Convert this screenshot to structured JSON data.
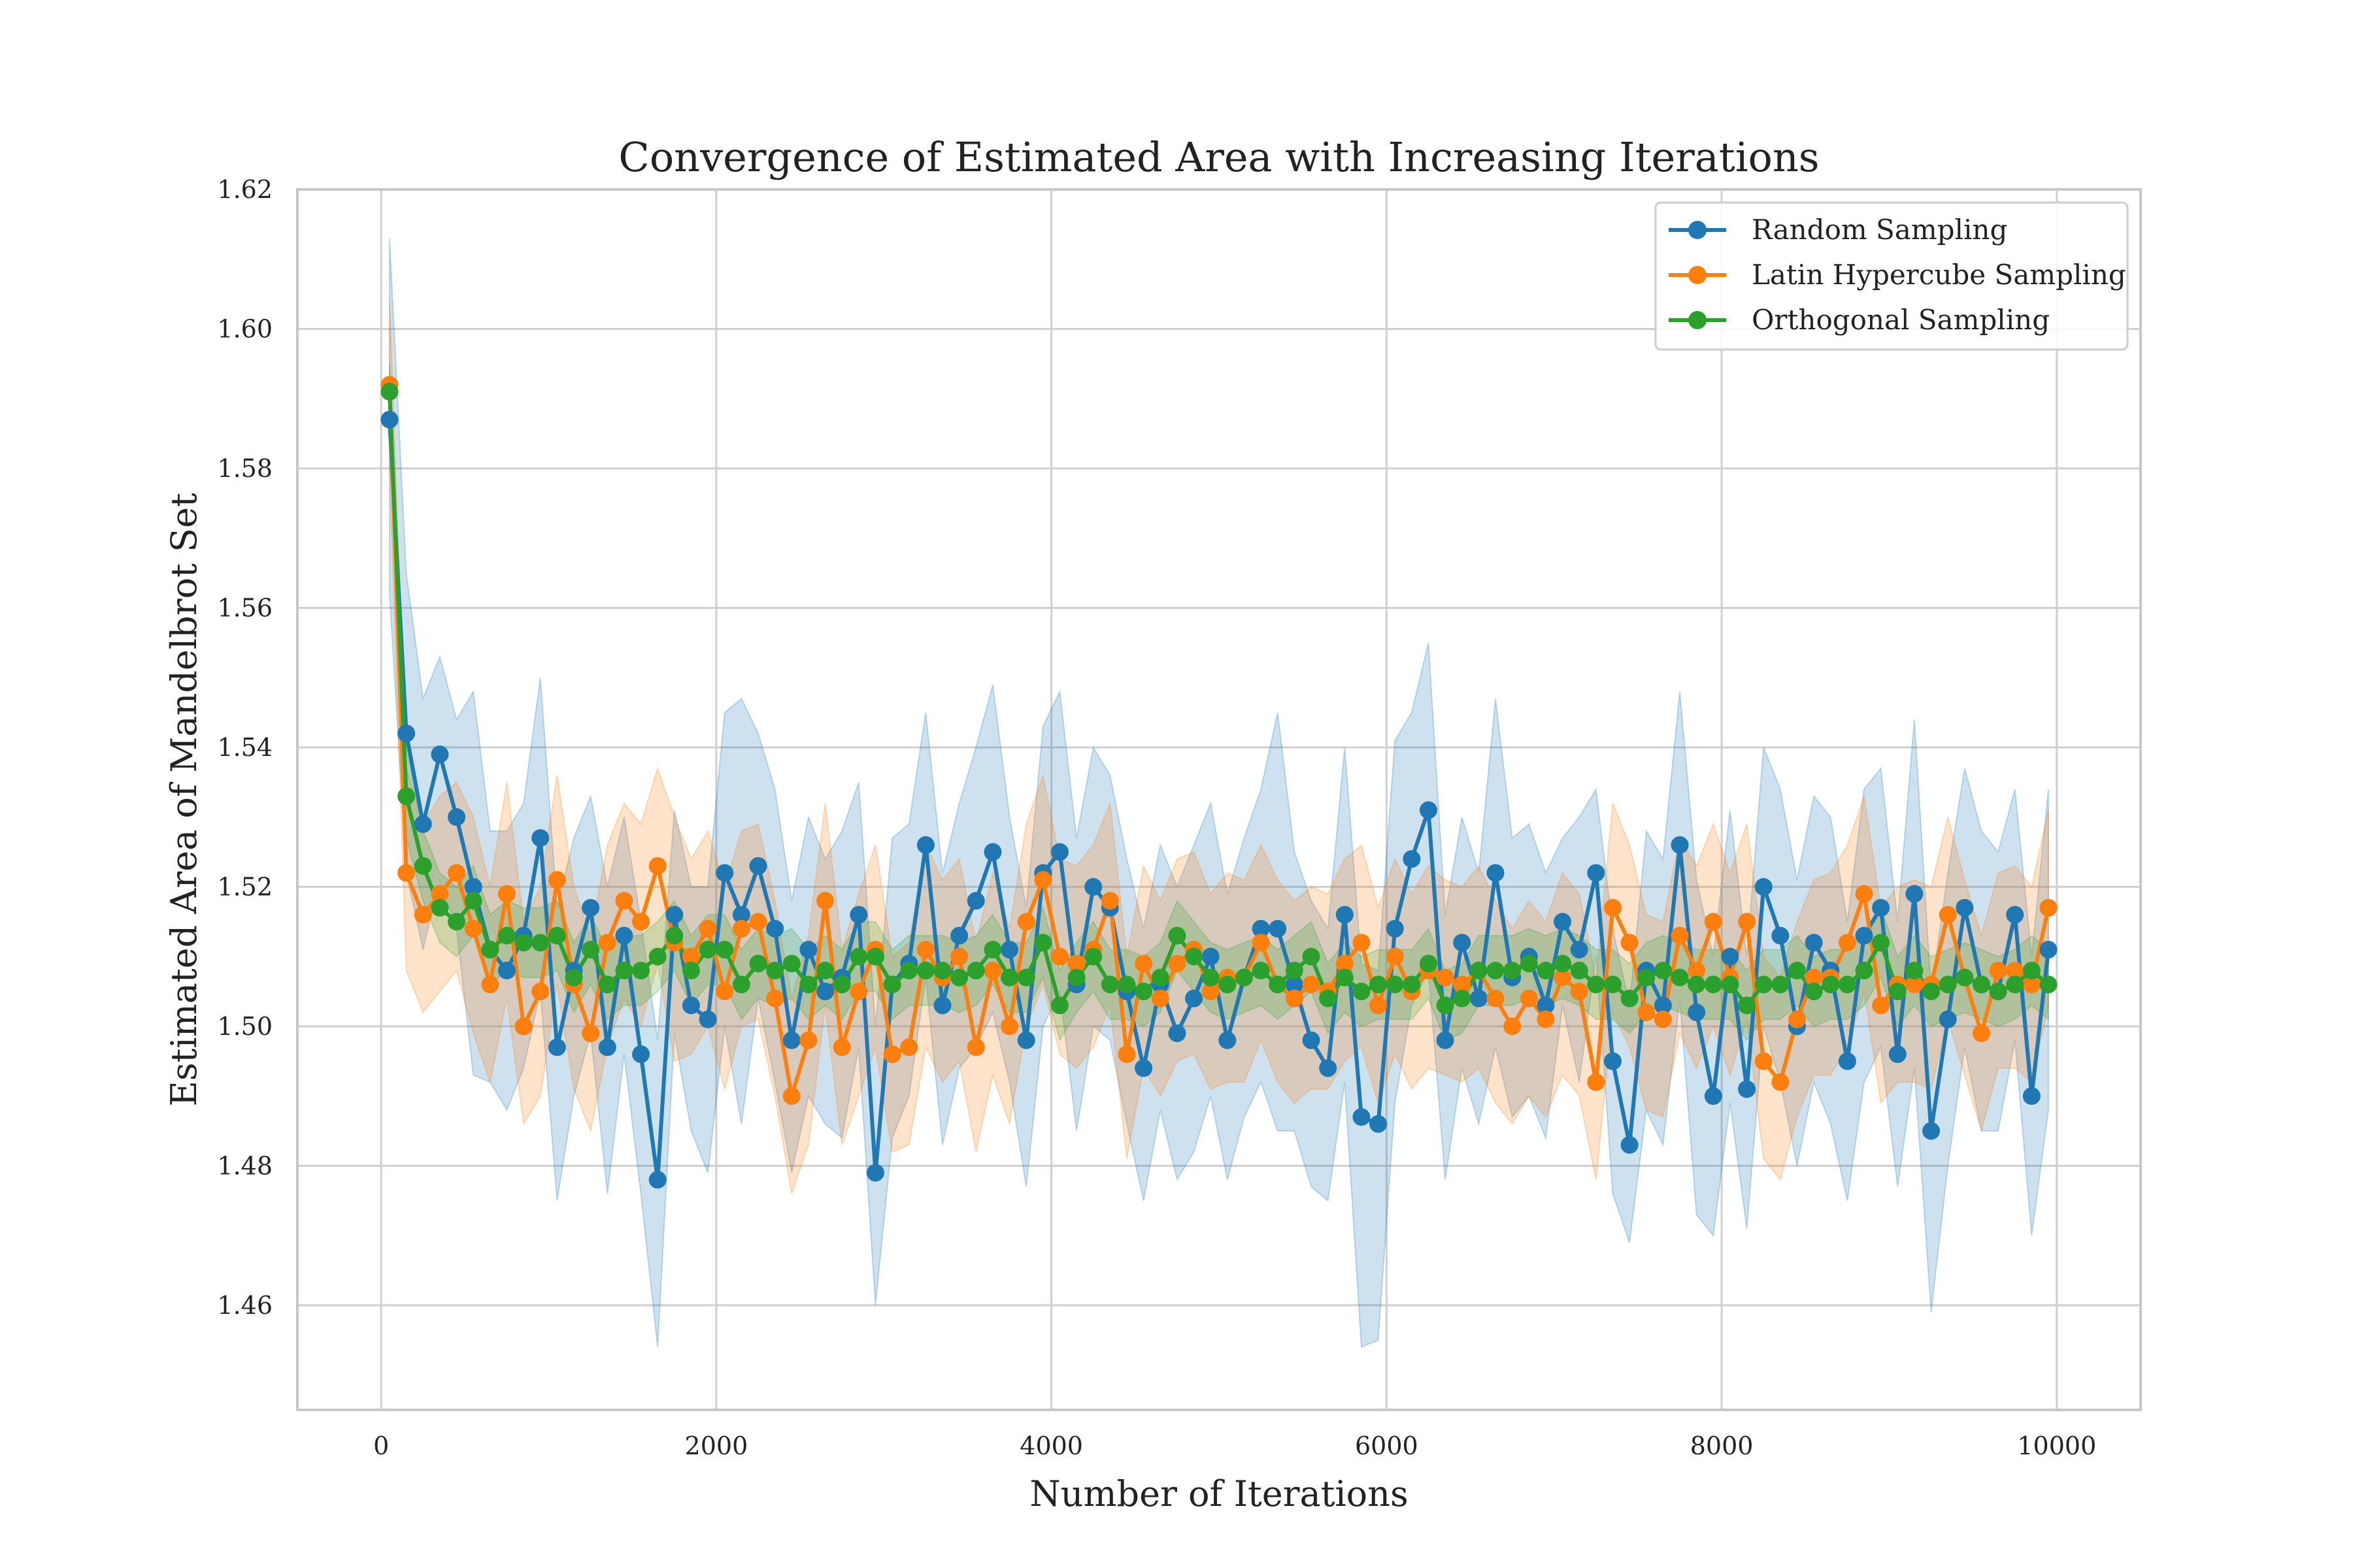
{
  "chart_data": {
    "type": "line",
    "title": "Convergence of Estimated Area with Increasing Iterations",
    "xlabel": "Number of Iterations",
    "ylabel": "Estimated Area of Mandelbrot Set",
    "xlim": [
      -500,
      10500
    ],
    "ylim": [
      1.445,
      1.62
    ],
    "xticks": [
      0,
      2000,
      4000,
      6000,
      8000,
      10000
    ],
    "yticks": [
      1.46,
      1.48,
      1.5,
      1.52,
      1.54,
      1.56,
      1.58,
      1.6,
      1.62
    ],
    "xtick_labels": [
      "0",
      "2000",
      "4000",
      "6000",
      "8000",
      "10000"
    ],
    "ytick_labels": [
      "1.46",
      "1.48",
      "1.50",
      "1.52",
      "1.54",
      "1.56",
      "1.58",
      "1.60",
      "1.62"
    ],
    "grid": true,
    "legend_position": "top-right",
    "x": [
      50,
      150,
      250,
      350,
      450,
      550,
      650,
      750,
      850,
      950,
      1050,
      1150,
      1250,
      1350,
      1450,
      1550,
      1650,
      1750,
      1850,
      1950,
      2050,
      2150,
      2250,
      2350,
      2450,
      2550,
      2650,
      2750,
      2850,
      2950,
      3050,
      3150,
      3250,
      3350,
      3450,
      3550,
      3650,
      3750,
      3850,
      3950,
      4050,
      4150,
      4250,
      4350,
      4450,
      4550,
      4650,
      4750,
      4850,
      4950,
      5050,
      5150,
      5250,
      5350,
      5450,
      5550,
      5650,
      5750,
      5850,
      5950,
      6050,
      6150,
      6250,
      6350,
      6450,
      6550,
      6650,
      6750,
      6850,
      6950,
      7050,
      7150,
      7250,
      7350,
      7450,
      7550,
      7650,
      7750,
      7850,
      7950,
      8050,
      8150,
      8250,
      8350,
      8450,
      8550,
      8650,
      8750,
      8850,
      8950,
      9050,
      9150,
      9250,
      9350,
      9450,
      9550,
      9650,
      9750,
      9850,
      9950
    ],
    "series": [
      {
        "name": "Random Sampling",
        "color": "#1f77b4",
        "values": [
          1.587,
          1.542,
          1.529,
          1.539,
          1.53,
          1.52,
          1.511,
          1.508,
          1.513,
          1.527,
          1.497,
          1.508,
          1.517,
          1.497,
          1.513,
          1.496,
          1.478,
          1.516,
          1.503,
          1.501,
          1.522,
          1.516,
          1.523,
          1.514,
          1.498,
          1.511,
          1.505,
          1.507,
          1.516,
          1.479,
          1.506,
          1.509,
          1.526,
          1.503,
          1.513,
          1.518,
          1.525,
          1.511,
          1.498,
          1.522,
          1.525,
          1.506,
          1.52,
          1.517,
          1.505,
          1.494,
          1.506,
          1.499,
          1.504,
          1.51,
          1.498,
          1.507,
          1.514,
          1.514,
          1.506,
          1.498,
          1.494,
          1.516,
          1.487,
          1.486,
          1.514,
          1.524,
          1.531,
          1.498,
          1.512,
          1.504,
          1.522,
          1.507,
          1.51,
          1.503,
          1.515,
          1.511,
          1.522,
          1.495,
          1.483,
          1.508,
          1.503,
          1.526,
          1.502,
          1.49,
          1.51,
          1.491,
          1.52,
          1.513,
          1.5,
          1.512,
          1.508,
          1.495,
          1.513,
          1.517,
          1.496,
          1.519,
          1.485,
          1.501,
          1.517,
          1.506,
          1.505,
          1.516,
          1.49,
          1.511
        ],
        "band_upper": [
          1.613,
          1.565,
          1.547,
          1.553,
          1.544,
          1.548,
          1.528,
          1.528,
          1.532,
          1.55,
          1.517,
          1.527,
          1.533,
          1.52,
          1.53,
          1.515,
          1.498,
          1.531,
          1.52,
          1.52,
          1.545,
          1.547,
          1.542,
          1.534,
          1.518,
          1.53,
          1.524,
          1.528,
          1.535,
          1.5,
          1.527,
          1.529,
          1.545,
          1.522,
          1.532,
          1.54,
          1.549,
          1.53,
          1.517,
          1.543,
          1.548,
          1.527,
          1.54,
          1.536,
          1.524,
          1.514,
          1.526,
          1.52,
          1.526,
          1.532,
          1.519,
          1.527,
          1.534,
          1.545,
          1.525,
          1.518,
          1.514,
          1.54,
          1.509,
          1.508,
          1.541,
          1.545,
          1.555,
          1.516,
          1.53,
          1.522,
          1.547,
          1.527,
          1.529,
          1.522,
          1.527,
          1.53,
          1.534,
          1.514,
          1.503,
          1.528,
          1.524,
          1.548,
          1.521,
          1.51,
          1.531,
          1.51,
          1.54,
          1.534,
          1.521,
          1.533,
          1.53,
          1.515,
          1.534,
          1.537,
          1.515,
          1.544,
          1.505,
          1.522,
          1.537,
          1.528,
          1.525,
          1.534,
          1.51,
          1.534
        ],
        "band_lower": [
          1.562,
          1.522,
          1.511,
          1.521,
          1.514,
          1.493,
          1.492,
          1.488,
          1.494,
          1.505,
          1.475,
          1.49,
          1.499,
          1.476,
          1.496,
          1.476,
          1.454,
          1.499,
          1.485,
          1.479,
          1.5,
          1.486,
          1.504,
          1.492,
          1.479,
          1.49,
          1.486,
          1.484,
          1.497,
          1.46,
          1.484,
          1.49,
          1.507,
          1.483,
          1.494,
          1.497,
          1.502,
          1.492,
          1.477,
          1.5,
          1.505,
          1.485,
          1.5,
          1.498,
          1.486,
          1.475,
          1.488,
          1.478,
          1.482,
          1.49,
          1.478,
          1.487,
          1.492,
          1.485,
          1.485,
          1.477,
          1.475,
          1.492,
          1.454,
          1.455,
          1.489,
          1.503,
          1.508,
          1.478,
          1.494,
          1.486,
          1.497,
          1.487,
          1.49,
          1.484,
          1.503,
          1.492,
          1.51,
          1.476,
          1.469,
          1.488,
          1.483,
          1.504,
          1.473,
          1.47,
          1.489,
          1.471,
          1.5,
          1.492,
          1.48,
          1.492,
          1.486,
          1.475,
          1.492,
          1.497,
          1.477,
          1.494,
          1.459,
          1.48,
          1.497,
          1.485,
          1.485,
          1.498,
          1.47,
          1.488
        ]
      },
      {
        "name": "Latin Hypercube Sampling",
        "color": "#ff7f0e",
        "values": [
          1.592,
          1.522,
          1.516,
          1.519,
          1.522,
          1.514,
          1.506,
          1.519,
          1.5,
          1.505,
          1.521,
          1.506,
          1.499,
          1.512,
          1.518,
          1.515,
          1.523,
          1.512,
          1.51,
          1.514,
          1.505,
          1.514,
          1.515,
          1.504,
          1.49,
          1.498,
          1.518,
          1.497,
          1.505,
          1.511,
          1.496,
          1.497,
          1.511,
          1.507,
          1.51,
          1.497,
          1.508,
          1.5,
          1.515,
          1.521,
          1.51,
          1.509,
          1.511,
          1.518,
          1.496,
          1.509,
          1.504,
          1.509,
          1.511,
          1.505,
          1.507,
          1.507,
          1.512,
          1.506,
          1.504,
          1.506,
          1.505,
          1.509,
          1.512,
          1.503,
          1.51,
          1.505,
          1.508,
          1.507,
          1.506,
          1.508,
          1.504,
          1.5,
          1.504,
          1.501,
          1.507,
          1.505,
          1.492,
          1.517,
          1.512,
          1.502,
          1.501,
          1.513,
          1.508,
          1.515,
          1.507,
          1.515,
          1.495,
          1.492,
          1.501,
          1.507,
          1.507,
          1.512,
          1.519,
          1.503,
          1.506,
          1.506,
          1.506,
          1.516,
          1.507,
          1.499,
          1.508,
          1.508,
          1.506,
          1.517
        ],
        "band_upper": [
          1.604,
          1.537,
          1.529,
          1.533,
          1.535,
          1.53,
          1.52,
          1.535,
          1.515,
          1.52,
          1.536,
          1.52,
          1.513,
          1.526,
          1.532,
          1.529,
          1.537,
          1.53,
          1.524,
          1.528,
          1.52,
          1.528,
          1.529,
          1.518,
          1.504,
          1.513,
          1.532,
          1.511,
          1.519,
          1.526,
          1.51,
          1.512,
          1.526,
          1.521,
          1.524,
          1.512,
          1.522,
          1.514,
          1.529,
          1.536,
          1.524,
          1.523,
          1.526,
          1.532,
          1.51,
          1.523,
          1.518,
          1.524,
          1.525,
          1.519,
          1.522,
          1.521,
          1.526,
          1.521,
          1.518,
          1.52,
          1.519,
          1.524,
          1.526,
          1.517,
          1.524,
          1.519,
          1.523,
          1.521,
          1.52,
          1.523,
          1.518,
          1.514,
          1.518,
          1.515,
          1.522,
          1.519,
          1.507,
          1.532,
          1.526,
          1.516,
          1.515,
          1.527,
          1.523,
          1.529,
          1.522,
          1.529,
          1.51,
          1.507,
          1.515,
          1.521,
          1.522,
          1.526,
          1.533,
          1.517,
          1.52,
          1.521,
          1.52,
          1.53,
          1.521,
          1.513,
          1.522,
          1.523,
          1.52,
          1.531
        ],
        "band_lower": [
          1.58,
          1.508,
          1.502,
          1.505,
          1.508,
          1.499,
          1.492,
          1.504,
          1.486,
          1.49,
          1.506,
          1.491,
          1.485,
          1.497,
          1.504,
          1.5,
          1.509,
          1.495,
          1.496,
          1.5,
          1.491,
          1.5,
          1.501,
          1.49,
          1.476,
          1.483,
          1.503,
          1.483,
          1.49,
          1.497,
          1.482,
          1.483,
          1.497,
          1.492,
          1.495,
          1.482,
          1.493,
          1.486,
          1.5,
          1.506,
          1.496,
          1.494,
          1.497,
          1.503,
          1.481,
          1.494,
          1.49,
          1.495,
          1.496,
          1.491,
          1.492,
          1.492,
          1.498,
          1.492,
          1.489,
          1.491,
          1.491,
          1.495,
          1.497,
          1.489,
          1.496,
          1.491,
          1.494,
          1.493,
          1.492,
          1.494,
          1.489,
          1.486,
          1.49,
          1.487,
          1.493,
          1.49,
          1.478,
          1.502,
          1.497,
          1.488,
          1.487,
          1.499,
          1.494,
          1.5,
          1.493,
          1.501,
          1.481,
          1.478,
          1.487,
          1.493,
          1.493,
          1.497,
          1.505,
          1.489,
          1.492,
          1.492,
          1.491,
          1.501,
          1.493,
          1.485,
          1.494,
          1.494,
          1.492,
          1.503
        ]
      },
      {
        "name": "Orthogonal Sampling",
        "color": "#2ca02c",
        "values": [
          1.591,
          1.533,
          1.523,
          1.517,
          1.515,
          1.518,
          1.511,
          1.513,
          1.512,
          1.512,
          1.513,
          1.507,
          1.511,
          1.506,
          1.508,
          1.508,
          1.51,
          1.513,
          1.508,
          1.511,
          1.511,
          1.506,
          1.509,
          1.508,
          1.509,
          1.506,
          1.508,
          1.506,
          1.51,
          1.51,
          1.506,
          1.508,
          1.508,
          1.508,
          1.507,
          1.508,
          1.511,
          1.507,
          1.507,
          1.512,
          1.503,
          1.507,
          1.51,
          1.506,
          1.506,
          1.505,
          1.507,
          1.513,
          1.51,
          1.507,
          1.506,
          1.507,
          1.508,
          1.506,
          1.508,
          1.51,
          1.504,
          1.507,
          1.505,
          1.506,
          1.506,
          1.506,
          1.509,
          1.503,
          1.504,
          1.508,
          1.508,
          1.508,
          1.509,
          1.508,
          1.509,
          1.508,
          1.506,
          1.506,
          1.504,
          1.507,
          1.508,
          1.507,
          1.506,
          1.506,
          1.506,
          1.503,
          1.506,
          1.506,
          1.508,
          1.505,
          1.506,
          1.506,
          1.508,
          1.512,
          1.505,
          1.508,
          1.505,
          1.506,
          1.507,
          1.506,
          1.505,
          1.506,
          1.508,
          1.506
        ],
        "band_upper": [
          1.595,
          1.54,
          1.528,
          1.522,
          1.52,
          1.523,
          1.516,
          1.518,
          1.517,
          1.517,
          1.518,
          1.512,
          1.516,
          1.511,
          1.513,
          1.513,
          1.515,
          1.518,
          1.513,
          1.516,
          1.516,
          1.511,
          1.514,
          1.513,
          1.514,
          1.511,
          1.513,
          1.511,
          1.515,
          1.515,
          1.511,
          1.513,
          1.513,
          1.513,
          1.512,
          1.513,
          1.516,
          1.512,
          1.512,
          1.517,
          1.508,
          1.512,
          1.515,
          1.511,
          1.511,
          1.51,
          1.512,
          1.518,
          1.515,
          1.512,
          1.511,
          1.512,
          1.513,
          1.511,
          1.513,
          1.515,
          1.509,
          1.512,
          1.51,
          1.511,
          1.511,
          1.511,
          1.514,
          1.508,
          1.509,
          1.513,
          1.513,
          1.513,
          1.514,
          1.513,
          1.514,
          1.513,
          1.511,
          1.511,
          1.509,
          1.512,
          1.513,
          1.512,
          1.511,
          1.511,
          1.511,
          1.508,
          1.511,
          1.511,
          1.513,
          1.51,
          1.511,
          1.511,
          1.513,
          1.517,
          1.51,
          1.513,
          1.51,
          1.511,
          1.512,
          1.511,
          1.51,
          1.511,
          1.513,
          1.511
        ],
        "band_lower": [
          1.587,
          1.527,
          1.518,
          1.512,
          1.51,
          1.513,
          1.506,
          1.508,
          1.507,
          1.507,
          1.508,
          1.502,
          1.506,
          1.501,
          1.503,
          1.503,
          1.505,
          1.508,
          1.503,
          1.506,
          1.506,
          1.501,
          1.504,
          1.503,
          1.504,
          1.501,
          1.503,
          1.501,
          1.505,
          1.505,
          1.501,
          1.503,
          1.503,
          1.503,
          1.502,
          1.503,
          1.506,
          1.502,
          1.502,
          1.507,
          1.498,
          1.502,
          1.505,
          1.501,
          1.501,
          1.5,
          1.502,
          1.508,
          1.505,
          1.502,
          1.501,
          1.502,
          1.503,
          1.501,
          1.503,
          1.505,
          1.499,
          1.502,
          1.5,
          1.501,
          1.501,
          1.501,
          1.504,
          1.498,
          1.499,
          1.503,
          1.503,
          1.503,
          1.504,
          1.503,
          1.504,
          1.503,
          1.501,
          1.501,
          1.499,
          1.502,
          1.503,
          1.502,
          1.501,
          1.501,
          1.501,
          1.498,
          1.501,
          1.501,
          1.503,
          1.5,
          1.501,
          1.501,
          1.503,
          1.507,
          1.5,
          1.503,
          1.5,
          1.501,
          1.502,
          1.501,
          1.5,
          1.501,
          1.503,
          1.501
        ]
      }
    ]
  }
}
